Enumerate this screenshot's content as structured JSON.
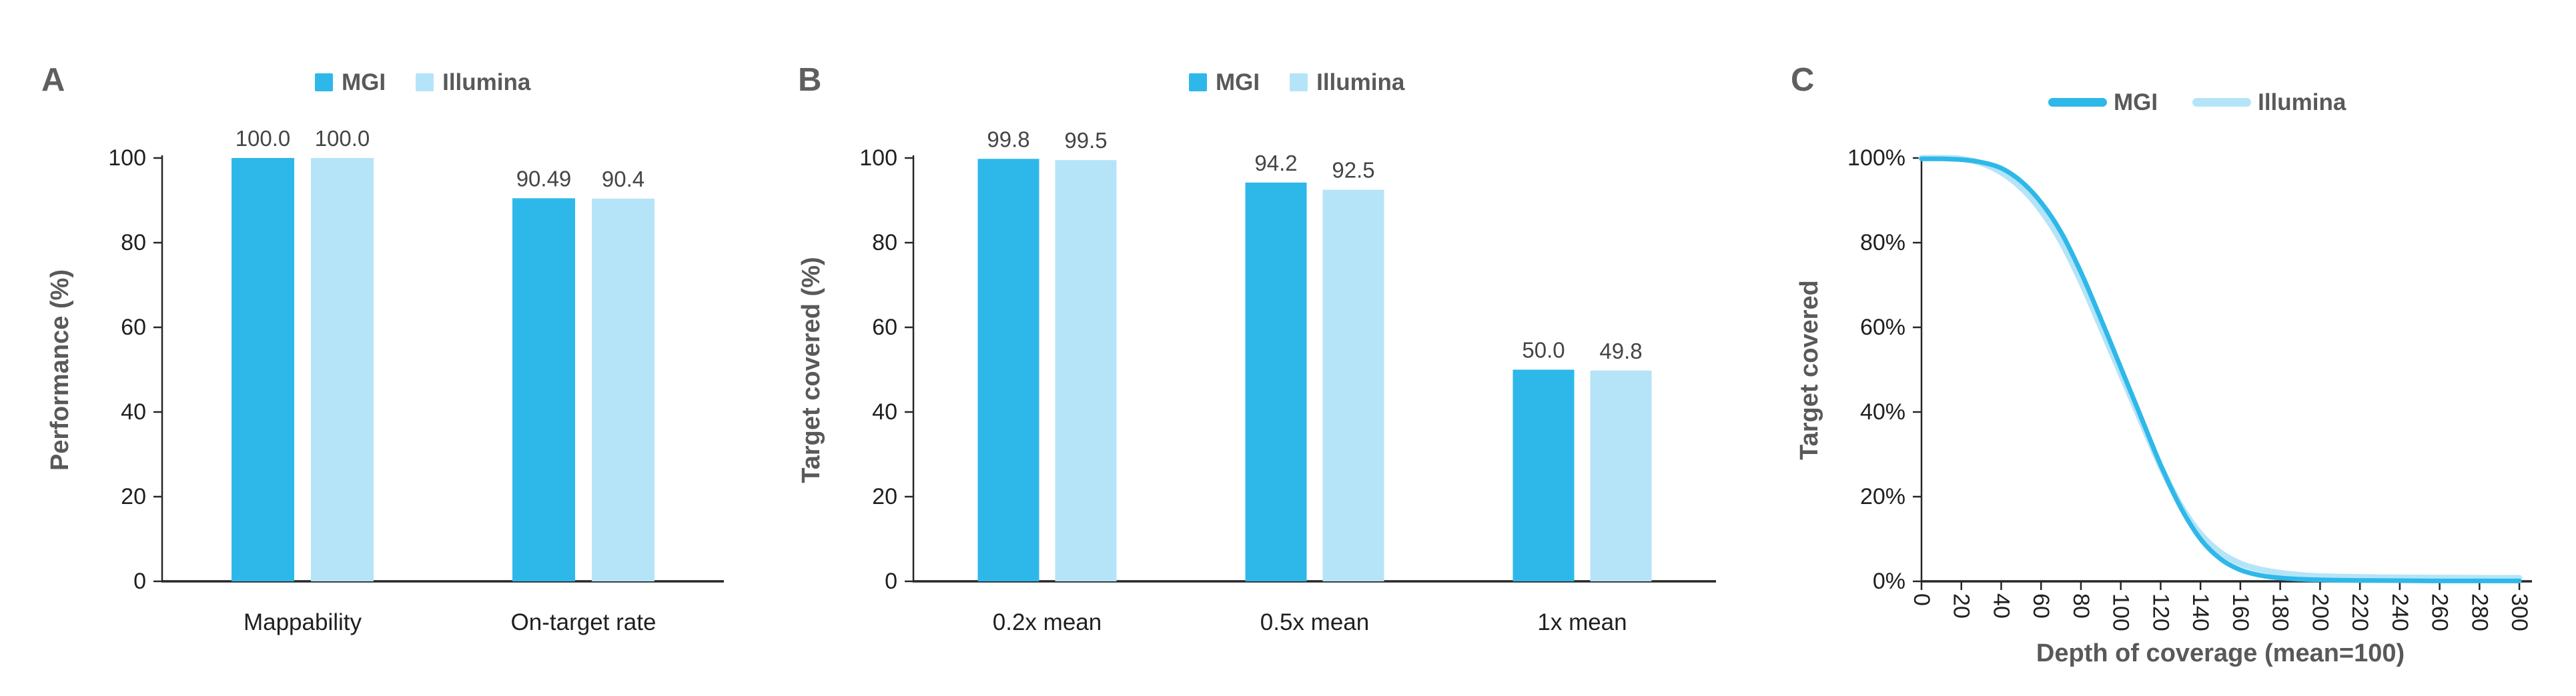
{
  "figure": {
    "background": "#ffffff",
    "colors": {
      "mgi": "#2EB8E9",
      "illumina": "#B5E4F8",
      "axis": "#262626",
      "tick_text": "#1f1f1f",
      "value_text": "#454545",
      "title_text": "#595959",
      "panel_letter": "#5f5f5f"
    }
  },
  "chart_data": [
    {
      "type": "bar",
      "panel_label": "A",
      "ylabel": "Performance (%)",
      "xlabel": "",
      "ylim": [
        0,
        100
      ],
      "yticks": [
        0,
        20,
        40,
        60,
        80,
        100
      ],
      "grid": false,
      "legend_position": "top",
      "categories": [
        "Mappability",
        "On-target rate"
      ],
      "series": [
        {
          "name": "MGI",
          "color_key": "mgi",
          "values": [
            100.0,
            90.49
          ],
          "labels": [
            "100.0",
            "90.49"
          ]
        },
        {
          "name": "Illumina",
          "color_key": "illumina",
          "values": [
            100.0,
            90.4
          ],
          "labels": [
            "100.0",
            "90.4"
          ]
        }
      ]
    },
    {
      "type": "bar",
      "panel_label": "B",
      "ylabel": "Target covered (%)",
      "xlabel": "",
      "ylim": [
        0,
        100
      ],
      "yticks": [
        0,
        20,
        40,
        60,
        80,
        100
      ],
      "grid": false,
      "legend_position": "top",
      "categories": [
        "0.2x mean",
        "0.5x mean",
        "1x mean"
      ],
      "series": [
        {
          "name": "MGI",
          "color_key": "mgi",
          "values": [
            99.8,
            94.2,
            50.0
          ],
          "labels": [
            "99.8",
            "94.2",
            "50.0"
          ]
        },
        {
          "name": "Illumina",
          "color_key": "illumina",
          "values": [
            99.5,
            92.5,
            49.8
          ],
          "labels": [
            "99.5",
            "92.5",
            "49.8"
          ]
        }
      ]
    },
    {
      "type": "line",
      "panel_label": "C",
      "ylabel": "Target covered",
      "xlabel": "Depth of coverage (mean=100)",
      "ylim": [
        0,
        100
      ],
      "yticks": [
        0,
        20,
        40,
        60,
        80,
        100
      ],
      "ytick_suffix": "%",
      "xlim": [
        0,
        300
      ],
      "xticks": [
        0,
        20,
        40,
        60,
        80,
        100,
        120,
        140,
        160,
        180,
        200,
        220,
        240,
        260,
        280,
        300
      ],
      "grid": false,
      "legend_position": "top",
      "series": [
        {
          "name": "MGI",
          "color_key": "mgi",
          "stroke_width": 7,
          "points": [
            [
              0,
              99.8
            ],
            [
              10,
              99.8
            ],
            [
              20,
              99.6
            ],
            [
              30,
              99.0
            ],
            [
              40,
              97.6
            ],
            [
              50,
              94.5
            ],
            [
              60,
              89.5
            ],
            [
              70,
              82.5
            ],
            [
              80,
              73.0
            ],
            [
              90,
              62.0
            ],
            [
              100,
              50.5
            ],
            [
              110,
              39.0
            ],
            [
              120,
              27.5
            ],
            [
              130,
              17.5
            ],
            [
              140,
              10.0
            ],
            [
              150,
              5.3
            ],
            [
              160,
              2.7
            ],
            [
              170,
              1.4
            ],
            [
              180,
              0.8
            ],
            [
              190,
              0.5
            ],
            [
              200,
              0.35
            ],
            [
              220,
              0.2
            ],
            [
              240,
              0.15
            ],
            [
              260,
              0.1
            ],
            [
              280,
              0.1
            ],
            [
              300,
              0.1
            ]
          ]
        },
        {
          "name": "Illumina",
          "color_key": "illumina",
          "stroke_width": 9,
          "points": [
            [
              0,
              100
            ],
            [
              10,
              100
            ],
            [
              20,
              99.8
            ],
            [
              30,
              98.8
            ],
            [
              40,
              96.6
            ],
            [
              50,
              93.0
            ],
            [
              60,
              87.6
            ],
            [
              70,
              80.3
            ],
            [
              80,
              70.8
            ],
            [
              90,
              60.0
            ],
            [
              100,
              49.0
            ],
            [
              110,
              38.0
            ],
            [
              120,
              27.2
            ],
            [
              130,
              18.0
            ],
            [
              140,
              11.2
            ],
            [
              150,
              6.8
            ],
            [
              160,
              4.2
            ],
            [
              170,
              2.8
            ],
            [
              180,
              2.0
            ],
            [
              190,
              1.5
            ],
            [
              200,
              1.2
            ],
            [
              220,
              1.0
            ],
            [
              240,
              0.9
            ],
            [
              260,
              0.85
            ],
            [
              280,
              0.8
            ],
            [
              300,
              0.8
            ]
          ]
        }
      ]
    }
  ]
}
